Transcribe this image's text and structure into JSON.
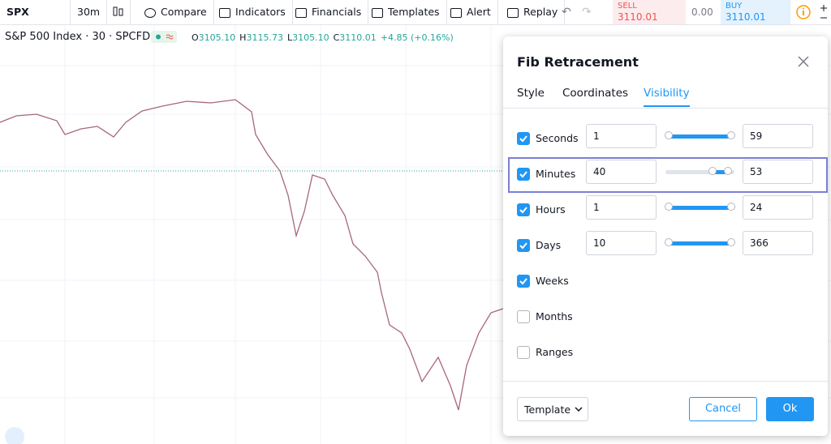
{
  "toolbar": {
    "symbol": "SPX",
    "interval": "30m",
    "buttons": [
      "Compare",
      "Indicators",
      "Financials",
      "Templates",
      "Alert",
      "Replay"
    ]
  },
  "trade": {
    "sell_label": "SELL",
    "sell_price": "3110.01",
    "spread": "0.00",
    "buy_label": "BUY",
    "buy_price": "3110.01"
  },
  "legend": {
    "title": "S&P 500 Index · 30 · SPCFD",
    "ohlc": [
      {
        "label": "O",
        "value": "3105.10"
      },
      {
        "label": "H",
        "value": "3115.73"
      },
      {
        "label": "L",
        "value": "3105.10"
      },
      {
        "label": "C",
        "value": "3110.01"
      }
    ],
    "change": "+4.85 (+0.16%)"
  },
  "dialog": {
    "title": "Fib Retracement",
    "tabs": [
      "Style",
      "Coordinates",
      "Visibility"
    ],
    "active_tab": "Visibility",
    "rows": [
      {
        "label": "Seconds",
        "checked": true,
        "from": "1",
        "to": "59"
      },
      {
        "label": "Minutes",
        "checked": true,
        "from": "40",
        "to": "53"
      },
      {
        "label": "Hours",
        "checked": true,
        "from": "1",
        "to": "24"
      },
      {
        "label": "Days",
        "checked": true,
        "from": "10",
        "to": "366"
      },
      {
        "label": "Weeks",
        "checked": true
      },
      {
        "label": "Months",
        "checked": false
      },
      {
        "label": "Ranges",
        "checked": false
      }
    ],
    "template": "Template",
    "cancel": "Cancel",
    "ok": "Ok"
  }
}
